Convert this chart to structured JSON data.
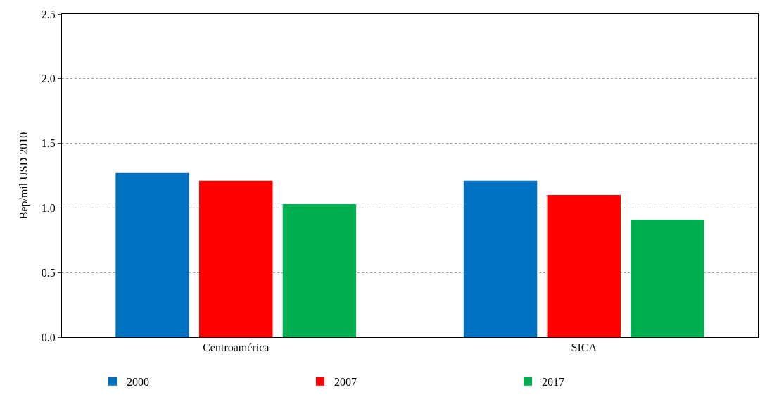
{
  "chart_data": {
    "type": "bar",
    "ylabel": "Bep/mil USD 2010",
    "categories": [
      "Centroamérica",
      "SICA"
    ],
    "series": [
      {
        "name": "2000",
        "color": "#0070c0",
        "values": [
          1.27,
          1.21
        ]
      },
      {
        "name": "2007",
        "color": "#ff0000",
        "values": [
          1.21,
          1.1
        ]
      },
      {
        "name": "2017",
        "color": "#00b050",
        "values": [
          1.03,
          0.91
        ]
      }
    ],
    "ylim": [
      0,
      2.5
    ],
    "yticks": [
      {
        "value": 0,
        "label": "0.0"
      },
      {
        "value": 0.5,
        "label": "0.5"
      },
      {
        "value": 1,
        "label": "1.0"
      },
      {
        "value": 1.5,
        "label": "1.5"
      },
      {
        "value": 2,
        "label": "2.0"
      },
      {
        "value": 2.5,
        "label": "2.5"
      }
    ],
    "grid": "y",
    "legend": "bottom"
  }
}
